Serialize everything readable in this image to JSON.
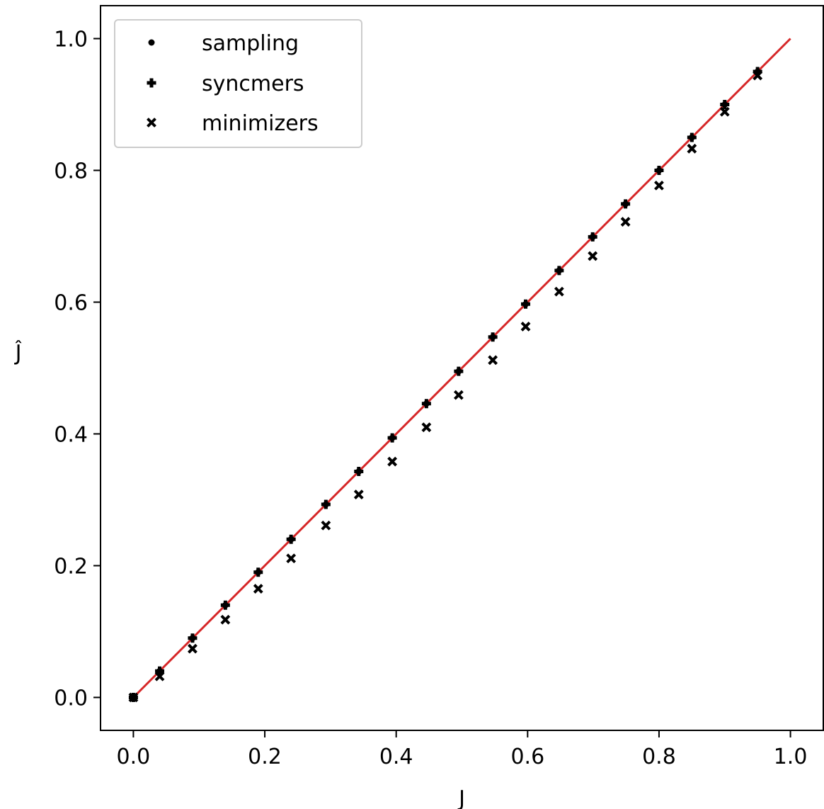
{
  "chart_data": {
    "type": "scatter",
    "title": "",
    "xlabel": "J",
    "ylabel": "Ĵ",
    "xlim": [
      -0.05,
      1.05
    ],
    "ylim": [
      -0.05,
      1.05
    ],
    "xticks": [
      "0.0",
      "0.2",
      "0.4",
      "0.6",
      "0.8",
      "1.0"
    ],
    "yticks": [
      "0.0",
      "0.2",
      "0.4",
      "0.6",
      "0.8",
      "1.0"
    ],
    "grid": false,
    "legend_position": "top-left",
    "x": [
      0.0,
      0.04,
      0.09,
      0.14,
      0.19,
      0.24,
      0.293,
      0.343,
      0.394,
      0.446,
      0.495,
      0.547,
      0.597,
      0.648,
      0.699,
      0.749,
      0.8,
      0.85,
      0.9,
      0.95
    ],
    "series": [
      {
        "name": "sampling",
        "marker": "dot",
        "color": "#000000",
        "values": [
          0.0,
          0.04,
          0.09,
          0.14,
          0.19,
          0.24,
          0.293,
          0.343,
          0.394,
          0.446,
          0.495,
          0.547,
          0.597,
          0.648,
          0.699,
          0.749,
          0.8,
          0.85,
          0.9,
          0.95
        ]
      },
      {
        "name": "syncmers",
        "marker": "plus",
        "color": "#000000",
        "values": [
          0.0,
          0.04,
          0.09,
          0.14,
          0.19,
          0.24,
          0.293,
          0.343,
          0.394,
          0.446,
          0.495,
          0.547,
          0.597,
          0.648,
          0.699,
          0.749,
          0.8,
          0.85,
          0.9,
          0.95
        ]
      },
      {
        "name": "minimizers",
        "marker": "x",
        "color": "#000000",
        "values": [
          0.0,
          0.032,
          0.074,
          0.118,
          0.165,
          0.211,
          0.261,
          0.308,
          0.358,
          0.41,
          0.459,
          0.512,
          0.563,
          0.616,
          0.67,
          0.722,
          0.777,
          0.833,
          0.889,
          0.944
        ]
      }
    ],
    "reference_line": {
      "x": [
        0.0,
        1.0
      ],
      "y": [
        0.0,
        1.0
      ],
      "color": "#d62728"
    }
  }
}
